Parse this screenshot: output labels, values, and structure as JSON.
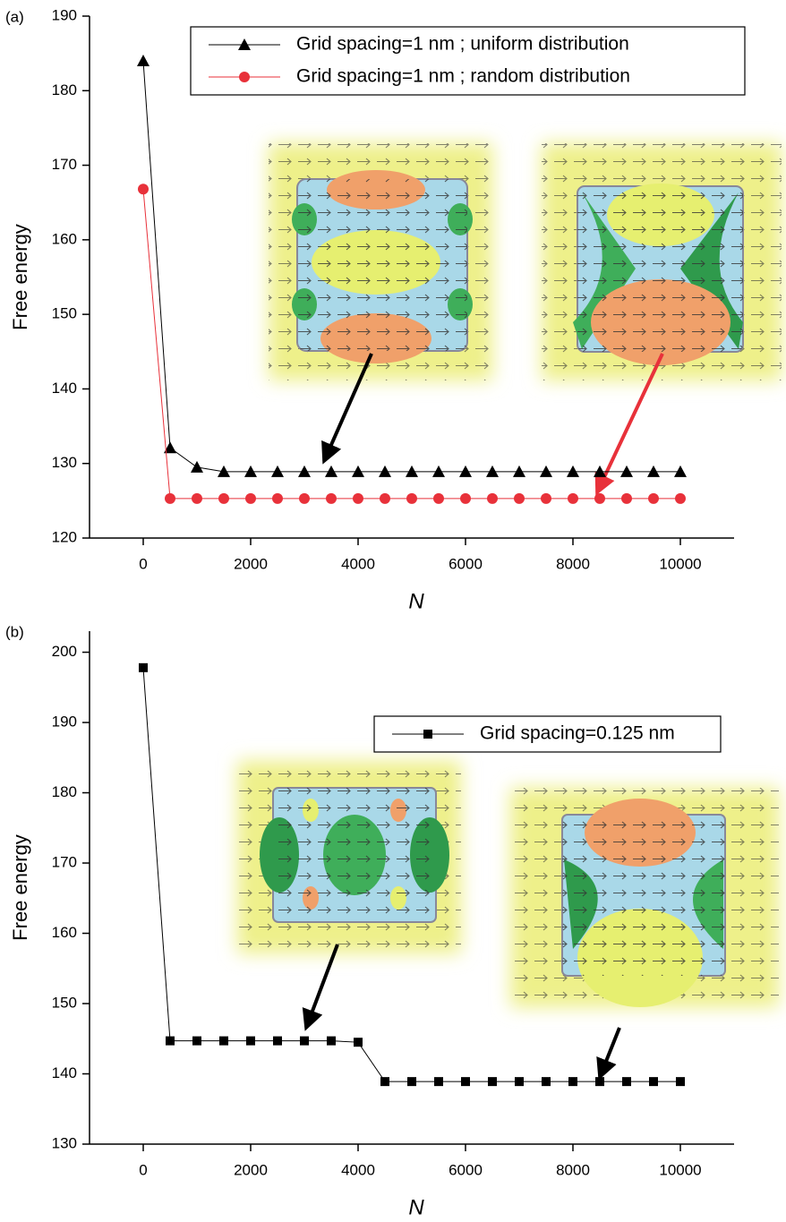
{
  "chart_data": [
    {
      "type": "line",
      "panel_label": "(a)",
      "ylabel": "Free energy",
      "xlabel": "N",
      "x": [
        0,
        500,
        1000,
        1500,
        2000,
        2500,
        3000,
        3500,
        4000,
        4500,
        5000,
        5500,
        6000,
        6500,
        7000,
        7500,
        8000,
        8500,
        9000,
        9500,
        10000
      ],
      "series": [
        {
          "name": "Grid spacing=1 nm ; uniform distribution",
          "color": "#000000",
          "marker": "triangle",
          "values": [
            184,
            132.1,
            129.5,
            128.9,
            128.9,
            128.9,
            128.9,
            128.9,
            128.9,
            128.9,
            128.9,
            128.9,
            128.9,
            128.9,
            128.9,
            128.9,
            128.9,
            128.9,
            128.9,
            128.9,
            128.9
          ]
        },
        {
          "name": "Grid spacing=1 nm ; random distribution",
          "color": "#e8313a",
          "marker": "circle",
          "values": [
            166.8,
            125.3,
            125.3,
            125.3,
            125.3,
            125.3,
            125.3,
            125.3,
            125.3,
            125.3,
            125.3,
            125.3,
            125.3,
            125.3,
            125.3,
            125.3,
            125.3,
            125.3,
            125.3,
            125.3,
            125.3
          ]
        }
      ],
      "xlim": [
        -1000,
        11000
      ],
      "xticks": [
        0,
        2000,
        4000,
        6000,
        8000,
        10000
      ],
      "ylim": [
        120,
        190
      ],
      "yticks": [
        120,
        130,
        140,
        150,
        160,
        170,
        180,
        190
      ],
      "legend": "upper right"
    },
    {
      "type": "line",
      "panel_label": "(b)",
      "ylabel": "Free energy",
      "xlabel": "N",
      "x": [
        0,
        500,
        1000,
        1500,
        2000,
        2500,
        3000,
        3500,
        4000,
        4500,
        5000,
        5500,
        6000,
        6500,
        7000,
        7500,
        8000,
        8500,
        9000,
        9500,
        10000
      ],
      "series": [
        {
          "name": "Grid spacing=0.125 nm",
          "color": "#000000",
          "marker": "square",
          "values": [
            197.8,
            144.7,
            144.7,
            144.7,
            144.7,
            144.7,
            144.7,
            144.7,
            144.5,
            138.9,
            138.9,
            138.9,
            138.9,
            138.9,
            138.9,
            138.9,
            138.9,
            138.9,
            138.9,
            138.9,
            138.9
          ]
        }
      ],
      "xlim": [
        -1000,
        11000
      ],
      "xticks": [
        0,
        2000,
        4000,
        6000,
        8000,
        10000
      ],
      "ylim": [
        130,
        203
      ],
      "yticks": [
        130,
        140,
        150,
        160,
        170,
        180,
        190,
        200
      ],
      "legend": "upper right"
    }
  ]
}
